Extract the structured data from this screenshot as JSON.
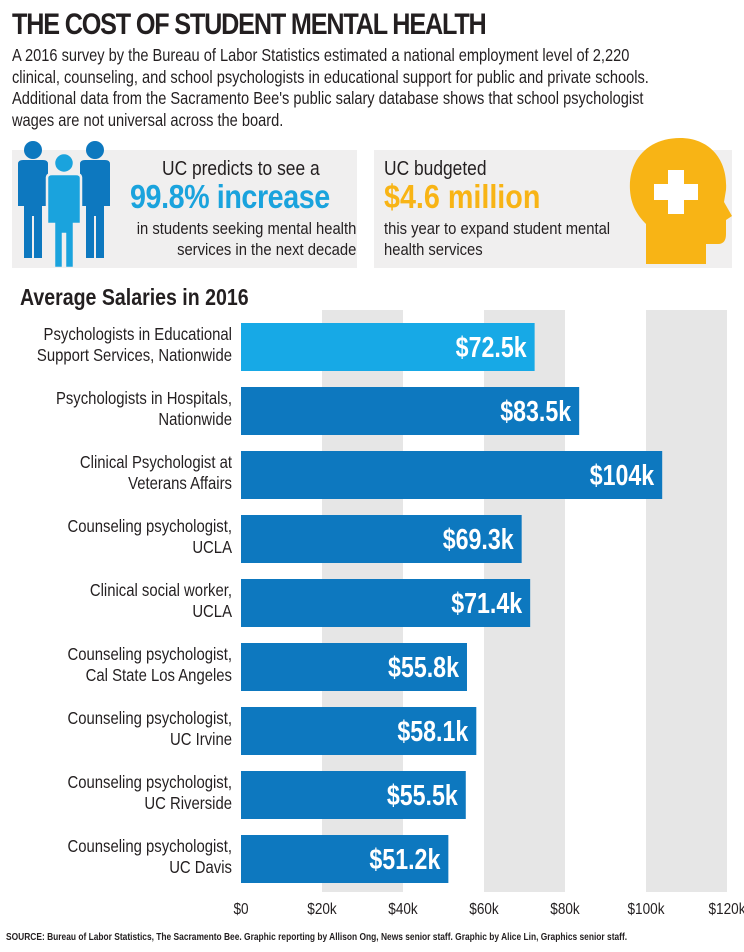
{
  "header": {
    "title": "THE COST OF STUDENT MENTAL HEALTH",
    "intro_lines": [
      "A 2016 survey by the Bureau of Labor Statistics estimated a national employment level of 2,220",
      "clinical, counseling, and school psychologists in educational support for public and private schools.",
      "Additional data from the Sacramento Bee's public salary database shows that school psychologist",
      "wages are not universal across the board."
    ]
  },
  "callout_left": {
    "icon": "people-icon",
    "line1": "UC predicts to see a",
    "highlight": "99.8% increase",
    "line3a": "in students seeking mental health",
    "line3b": "services in the next decade"
  },
  "callout_right": {
    "icon": "head-with-cross-icon",
    "line1": "UC budgeted",
    "highlight": "$4.6 million",
    "line3a": "this year to expand student mental",
    "line3b": "health services"
  },
  "colors": {
    "bar_primary": "#0d78bf",
    "bar_highlight": "#17a9e6",
    "blue_text": "#1aa3dd",
    "gold": "#f8b415",
    "band": "#e6e6e6",
    "panel": "#f0efef"
  },
  "chart_data": {
    "type": "bar",
    "orientation": "horizontal",
    "title": "Average Salaries in 2016",
    "categories": [
      [
        "Psychologists in Educational",
        "Support Services, Nationwide"
      ],
      [
        "Psychologists in Hospitals,",
        "Nationwide"
      ],
      [
        "Clinical Psychologist at",
        "Veterans Affairs"
      ],
      [
        "Counseling psychologist,",
        "UCLA"
      ],
      [
        "Clinical social worker,",
        "UCLA"
      ],
      [
        "Counseling psychologist,",
        "Cal State Los Angeles"
      ],
      [
        "Counseling psychologist,",
        "UC Irvine"
      ],
      [
        "Counseling psychologist,",
        "UC Riverside"
      ],
      [
        "Counseling psychologist,",
        "UC Davis"
      ]
    ],
    "values": [
      72.5,
      83.5,
      104,
      69.3,
      71.4,
      55.8,
      58.1,
      55.5,
      51.2
    ],
    "value_labels": [
      "$72.5k",
      "$83.5k",
      "$104k",
      "$69.3k",
      "$71.4k",
      "$55.8k",
      "$58.1k",
      "$55.5k",
      "$51.2k"
    ],
    "highlight_index": 0,
    "xlim": [
      0,
      120
    ],
    "xticks": [
      0,
      20,
      40,
      60,
      80,
      100,
      120
    ],
    "xtick_labels": [
      "$0",
      "$20k",
      "$40k",
      "$60k",
      "$80k",
      "$100k",
      "$120k"
    ],
    "xlabel": "",
    "ylabel": "",
    "grid": "alternating vertical bands"
  },
  "footer": {
    "source": "SOURCE: Bureau of Labor Statistics, The Sacramento Bee. Graphic reporting by Allison Ong, News senior staff. Graphic by Alice Lin, Graphics senior staff."
  }
}
